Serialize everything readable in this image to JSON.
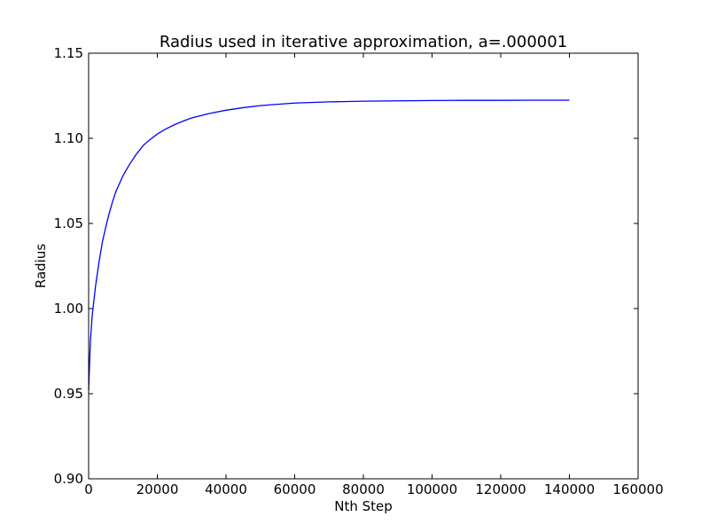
{
  "chart_data": {
    "type": "line",
    "title": "Radius used in iterative approximation, a=.000001",
    "xlabel": "Nth Step",
    "ylabel": "Radius",
    "xlim": [
      0,
      160000
    ],
    "ylim": [
      0.9,
      1.15
    ],
    "x_ticks": [
      "0",
      "20000",
      "40000",
      "60000",
      "80000",
      "100000",
      "120000",
      "140000",
      "160000"
    ],
    "y_ticks": [
      "0.90",
      "0.95",
      "1.00",
      "1.05",
      "1.10",
      "1.15"
    ],
    "grid": false,
    "legend": "none",
    "series": [
      {
        "color": "#0000ff",
        "x": [
          0,
          500,
          1000,
          2000,
          3000,
          4000,
          5000,
          6000,
          7000,
          8000,
          10000,
          12000,
          14000,
          16000,
          18000,
          20000,
          22000,
          25000,
          28000,
          30000,
          35000,
          40000,
          45000,
          50000,
          55000,
          60000,
          70000,
          80000,
          90000,
          100000,
          110000,
          120000,
          130000,
          140000
        ],
        "y": [
          0.952,
          0.98,
          0.995,
          1.013,
          1.027,
          1.039,
          1.048,
          1.056,
          1.063,
          1.069,
          1.078,
          1.085,
          1.091,
          1.096,
          1.0995,
          1.1025,
          1.105,
          1.108,
          1.1105,
          1.112,
          1.1145,
          1.1165,
          1.118,
          1.1192,
          1.12,
          1.1207,
          1.1214,
          1.1218,
          1.122,
          1.1222,
          1.1223,
          1.1223,
          1.1224,
          1.1224
        ]
      }
    ]
  }
}
